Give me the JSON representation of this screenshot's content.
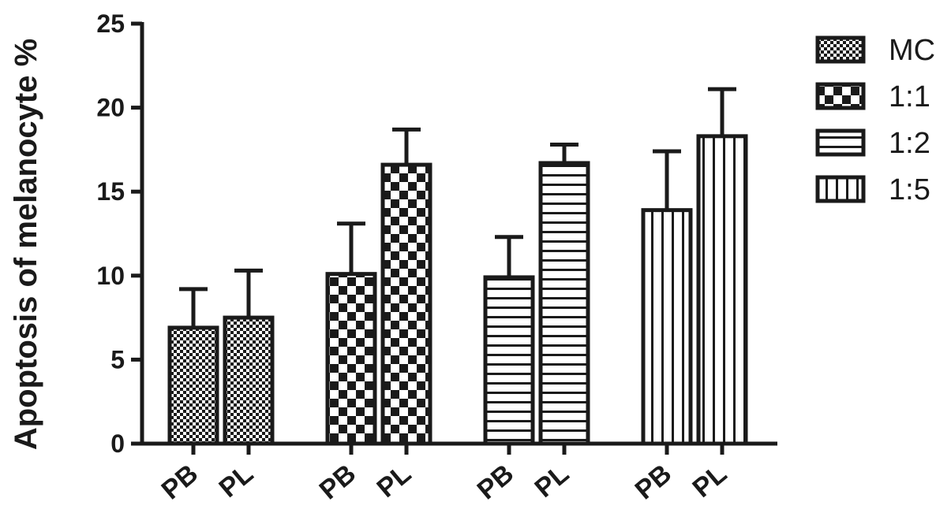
{
  "chart_data": {
    "type": "bar",
    "ylabel": "Apoptosis of melanocyte %",
    "xlabel": "",
    "ylim": [
      0,
      25
    ],
    "yticks": [
      0,
      5,
      10,
      15,
      20,
      25
    ],
    "grid": false,
    "legend_position": "top-right",
    "bar_color": "#ffffff",
    "stroke_color": "#1a1a1a",
    "groups": [
      {
        "name": "MC",
        "pattern": "fine-checker",
        "bars": [
          {
            "label": "PB",
            "value": 6.9,
            "error": 2.3
          },
          {
            "label": "PL",
            "value": 7.5,
            "error": 2.8
          }
        ]
      },
      {
        "name": "1:1",
        "pattern": "checker",
        "bars": [
          {
            "label": "PB",
            "value": 10.1,
            "error": 3.0
          },
          {
            "label": "PL",
            "value": 16.6,
            "error": 2.1
          }
        ]
      },
      {
        "name": "1:2",
        "pattern": "horizontal-lines",
        "bars": [
          {
            "label": "PB",
            "value": 9.9,
            "error": 2.4
          },
          {
            "label": "PL",
            "value": 16.7,
            "error": 1.1
          }
        ]
      },
      {
        "name": "1:5",
        "pattern": "vertical-lines",
        "bars": [
          {
            "label": "PB",
            "value": 13.9,
            "error": 3.5
          },
          {
            "label": "PL",
            "value": 18.3,
            "error": 2.8
          }
        ]
      }
    ]
  }
}
